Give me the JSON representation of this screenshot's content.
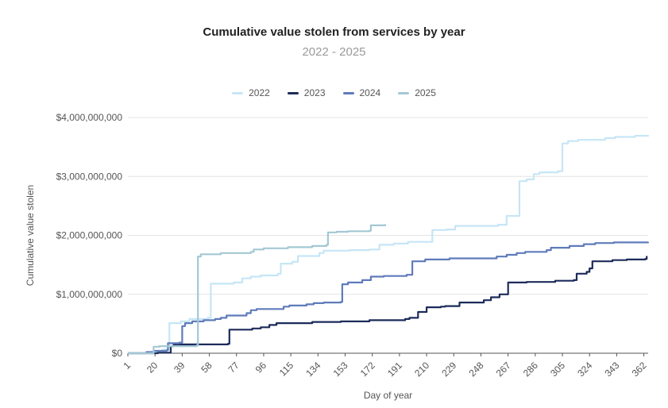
{
  "chart_data": {
    "type": "line",
    "title": "Cumulative value stolen from services by year",
    "subtitle": "2022 - 2025",
    "xlabel": "Day of year",
    "ylabel": "Cumulative value stolen",
    "ylim": [
      0,
      4000000000
    ],
    "xlim": [
      1,
      365
    ],
    "y_ticks": [
      0,
      1000000000,
      2000000000,
      3000000000,
      4000000000
    ],
    "y_tick_labels": [
      "$0",
      "$1,000,000,000",
      "$2,000,000,000",
      "$3,000,000,000",
      "$4,000,000,000"
    ],
    "x_ticks": [
      "1",
      "20",
      "39",
      "58",
      "77",
      "96",
      "115",
      "134",
      "153",
      "172",
      "191",
      "210",
      "229",
      "248",
      "267",
      "286",
      "305",
      "324",
      "343",
      "362"
    ],
    "legend_position": "top-center",
    "grid": "horizontal",
    "series": [
      {
        "name": "2022",
        "color": "#c6e6f6",
        "points": [
          [
            1,
            0
          ],
          [
            20,
            30000000
          ],
          [
            25,
            60000000
          ],
          [
            30,
            510000000
          ],
          [
            38,
            540000000
          ],
          [
            44,
            580000000
          ],
          [
            57,
            600000000
          ],
          [
            59,
            1180000000
          ],
          [
            75,
            1200000000
          ],
          [
            81,
            1270000000
          ],
          [
            87,
            1300000000
          ],
          [
            94,
            1320000000
          ],
          [
            106,
            1350000000
          ],
          [
            108,
            1520000000
          ],
          [
            116,
            1550000000
          ],
          [
            120,
            1650000000
          ],
          [
            135,
            1700000000
          ],
          [
            138,
            1740000000
          ],
          [
            156,
            1750000000
          ],
          [
            170,
            1760000000
          ],
          [
            177,
            1840000000
          ],
          [
            187,
            1860000000
          ],
          [
            197,
            1890000000
          ],
          [
            210,
            1890000000
          ],
          [
            214,
            2090000000
          ],
          [
            224,
            2100000000
          ],
          [
            230,
            2160000000
          ],
          [
            260,
            2180000000
          ],
          [
            266,
            2330000000
          ],
          [
            273,
            2330000000
          ],
          [
            275,
            2920000000
          ],
          [
            280,
            2950000000
          ],
          [
            285,
            3040000000
          ],
          [
            289,
            3070000000
          ],
          [
            302,
            3090000000
          ],
          [
            305,
            3560000000
          ],
          [
            309,
            3600000000
          ],
          [
            316,
            3620000000
          ],
          [
            335,
            3650000000
          ],
          [
            342,
            3670000000
          ],
          [
            356,
            3690000000
          ],
          [
            365,
            3700000000
          ]
        ]
      },
      {
        "name": "2023",
        "color": "#1c2b5a",
        "points": [
          [
            1,
            0
          ],
          [
            22,
            10000000
          ],
          [
            31,
            120000000
          ],
          [
            33,
            150000000
          ],
          [
            71,
            160000000
          ],
          [
            72,
            400000000
          ],
          [
            88,
            420000000
          ],
          [
            94,
            440000000
          ],
          [
            100,
            480000000
          ],
          [
            105,
            510000000
          ],
          [
            130,
            530000000
          ],
          [
            150,
            540000000
          ],
          [
            170,
            560000000
          ],
          [
            195,
            580000000
          ],
          [
            198,
            600000000
          ],
          [
            204,
            700000000
          ],
          [
            210,
            780000000
          ],
          [
            220,
            790000000
          ],
          [
            223,
            800000000
          ],
          [
            233,
            860000000
          ],
          [
            250,
            900000000
          ],
          [
            255,
            950000000
          ],
          [
            261,
            1000000000
          ],
          [
            267,
            1200000000
          ],
          [
            280,
            1210000000
          ],
          [
            300,
            1230000000
          ],
          [
            313,
            1240000000
          ],
          [
            315,
            1350000000
          ],
          [
            322,
            1380000000
          ],
          [
            324,
            1440000000
          ],
          [
            326,
            1560000000
          ],
          [
            340,
            1580000000
          ],
          [
            350,
            1590000000
          ],
          [
            363,
            1600000000
          ],
          [
            364,
            1650000000
          ]
        ]
      },
      {
        "name": "2024",
        "color": "#5f7bba",
        "points": [
          [
            1,
            0
          ],
          [
            14,
            20000000
          ],
          [
            19,
            40000000
          ],
          [
            28,
            50000000
          ],
          [
            29,
            170000000
          ],
          [
            37,
            180000000
          ],
          [
            39,
            460000000
          ],
          [
            41,
            510000000
          ],
          [
            46,
            540000000
          ],
          [
            54,
            560000000
          ],
          [
            62,
            580000000
          ],
          [
            66,
            600000000
          ],
          [
            70,
            640000000
          ],
          [
            84,
            680000000
          ],
          [
            87,
            730000000
          ],
          [
            91,
            750000000
          ],
          [
            110,
            790000000
          ],
          [
            114,
            810000000
          ],
          [
            126,
            830000000
          ],
          [
            131,
            850000000
          ],
          [
            138,
            860000000
          ],
          [
            150,
            870000000
          ],
          [
            151,
            1170000000
          ],
          [
            155,
            1200000000
          ],
          [
            165,
            1240000000
          ],
          [
            171,
            1300000000
          ],
          [
            180,
            1310000000
          ],
          [
            196,
            1330000000
          ],
          [
            200,
            1560000000
          ],
          [
            209,
            1590000000
          ],
          [
            226,
            1610000000
          ],
          [
            259,
            1640000000
          ],
          [
            266,
            1670000000
          ],
          [
            273,
            1700000000
          ],
          [
            279,
            1720000000
          ],
          [
            294,
            1750000000
          ],
          [
            297,
            1790000000
          ],
          [
            310,
            1820000000
          ],
          [
            320,
            1850000000
          ],
          [
            328,
            1870000000
          ],
          [
            341,
            1880000000
          ],
          [
            365,
            1890000000
          ]
        ]
      },
      {
        "name": "2025",
        "color": "#a4c8d4",
        "points": [
          [
            1,
            0
          ],
          [
            19,
            110000000
          ],
          [
            23,
            120000000
          ],
          [
            49,
            130000000
          ],
          [
            50,
            1640000000
          ],
          [
            52,
            1680000000
          ],
          [
            66,
            1700000000
          ],
          [
            84,
            1700000000
          ],
          [
            87,
            1720000000
          ],
          [
            89,
            1760000000
          ],
          [
            96,
            1780000000
          ],
          [
            113,
            1800000000
          ],
          [
            130,
            1820000000
          ],
          [
            140,
            1840000000
          ],
          [
            141,
            2050000000
          ],
          [
            147,
            2060000000
          ],
          [
            155,
            2070000000
          ],
          [
            170,
            2080000000
          ],
          [
            171,
            2170000000
          ],
          [
            181,
            2190000000
          ]
        ]
      }
    ]
  }
}
